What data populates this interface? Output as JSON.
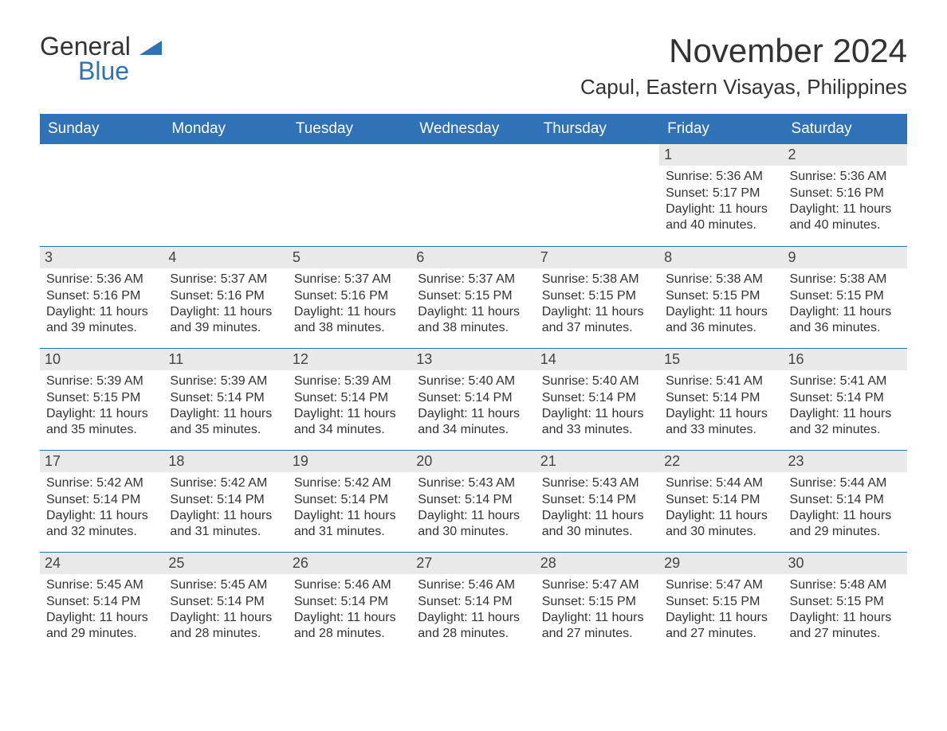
{
  "logo": {
    "text_general": "General",
    "text_blue": "Blue",
    "accent_color": "#2f72b8"
  },
  "title": "November 2024",
  "location": "Capul, Eastern Visayas, Philippines",
  "header_bg": "#2f72b8",
  "header_text_color": "#ffffff",
  "daynum_bg": "#e9e9e9",
  "week_border_color": "#2f72b8",
  "text_color": "#333333",
  "background_color": "#ffffff",
  "day_names": [
    "Sunday",
    "Monday",
    "Tuesday",
    "Wednesday",
    "Thursday",
    "Friday",
    "Saturday"
  ],
  "weeks": [
    [
      null,
      null,
      null,
      null,
      null,
      {
        "n": "1",
        "sunrise": "Sunrise: 5:36 AM",
        "sunset": "Sunset: 5:17 PM",
        "dl1": "Daylight: 11 hours",
        "dl2": "and 40 minutes."
      },
      {
        "n": "2",
        "sunrise": "Sunrise: 5:36 AM",
        "sunset": "Sunset: 5:16 PM",
        "dl1": "Daylight: 11 hours",
        "dl2": "and 40 minutes."
      }
    ],
    [
      {
        "n": "3",
        "sunrise": "Sunrise: 5:36 AM",
        "sunset": "Sunset: 5:16 PM",
        "dl1": "Daylight: 11 hours",
        "dl2": "and 39 minutes."
      },
      {
        "n": "4",
        "sunrise": "Sunrise: 5:37 AM",
        "sunset": "Sunset: 5:16 PM",
        "dl1": "Daylight: 11 hours",
        "dl2": "and 39 minutes."
      },
      {
        "n": "5",
        "sunrise": "Sunrise: 5:37 AM",
        "sunset": "Sunset: 5:16 PM",
        "dl1": "Daylight: 11 hours",
        "dl2": "and 38 minutes."
      },
      {
        "n": "6",
        "sunrise": "Sunrise: 5:37 AM",
        "sunset": "Sunset: 5:15 PM",
        "dl1": "Daylight: 11 hours",
        "dl2": "and 38 minutes."
      },
      {
        "n": "7",
        "sunrise": "Sunrise: 5:38 AM",
        "sunset": "Sunset: 5:15 PM",
        "dl1": "Daylight: 11 hours",
        "dl2": "and 37 minutes."
      },
      {
        "n": "8",
        "sunrise": "Sunrise: 5:38 AM",
        "sunset": "Sunset: 5:15 PM",
        "dl1": "Daylight: 11 hours",
        "dl2": "and 36 minutes."
      },
      {
        "n": "9",
        "sunrise": "Sunrise: 5:38 AM",
        "sunset": "Sunset: 5:15 PM",
        "dl1": "Daylight: 11 hours",
        "dl2": "and 36 minutes."
      }
    ],
    [
      {
        "n": "10",
        "sunrise": "Sunrise: 5:39 AM",
        "sunset": "Sunset: 5:15 PM",
        "dl1": "Daylight: 11 hours",
        "dl2": "and 35 minutes."
      },
      {
        "n": "11",
        "sunrise": "Sunrise: 5:39 AM",
        "sunset": "Sunset: 5:14 PM",
        "dl1": "Daylight: 11 hours",
        "dl2": "and 35 minutes."
      },
      {
        "n": "12",
        "sunrise": "Sunrise: 5:39 AM",
        "sunset": "Sunset: 5:14 PM",
        "dl1": "Daylight: 11 hours",
        "dl2": "and 34 minutes."
      },
      {
        "n": "13",
        "sunrise": "Sunrise: 5:40 AM",
        "sunset": "Sunset: 5:14 PM",
        "dl1": "Daylight: 11 hours",
        "dl2": "and 34 minutes."
      },
      {
        "n": "14",
        "sunrise": "Sunrise: 5:40 AM",
        "sunset": "Sunset: 5:14 PM",
        "dl1": "Daylight: 11 hours",
        "dl2": "and 33 minutes."
      },
      {
        "n": "15",
        "sunrise": "Sunrise: 5:41 AM",
        "sunset": "Sunset: 5:14 PM",
        "dl1": "Daylight: 11 hours",
        "dl2": "and 33 minutes."
      },
      {
        "n": "16",
        "sunrise": "Sunrise: 5:41 AM",
        "sunset": "Sunset: 5:14 PM",
        "dl1": "Daylight: 11 hours",
        "dl2": "and 32 minutes."
      }
    ],
    [
      {
        "n": "17",
        "sunrise": "Sunrise: 5:42 AM",
        "sunset": "Sunset: 5:14 PM",
        "dl1": "Daylight: 11 hours",
        "dl2": "and 32 minutes."
      },
      {
        "n": "18",
        "sunrise": "Sunrise: 5:42 AM",
        "sunset": "Sunset: 5:14 PM",
        "dl1": "Daylight: 11 hours",
        "dl2": "and 31 minutes."
      },
      {
        "n": "19",
        "sunrise": "Sunrise: 5:42 AM",
        "sunset": "Sunset: 5:14 PM",
        "dl1": "Daylight: 11 hours",
        "dl2": "and 31 minutes."
      },
      {
        "n": "20",
        "sunrise": "Sunrise: 5:43 AM",
        "sunset": "Sunset: 5:14 PM",
        "dl1": "Daylight: 11 hours",
        "dl2": "and 30 minutes."
      },
      {
        "n": "21",
        "sunrise": "Sunrise: 5:43 AM",
        "sunset": "Sunset: 5:14 PM",
        "dl1": "Daylight: 11 hours",
        "dl2": "and 30 minutes."
      },
      {
        "n": "22",
        "sunrise": "Sunrise: 5:44 AM",
        "sunset": "Sunset: 5:14 PM",
        "dl1": "Daylight: 11 hours",
        "dl2": "and 30 minutes."
      },
      {
        "n": "23",
        "sunrise": "Sunrise: 5:44 AM",
        "sunset": "Sunset: 5:14 PM",
        "dl1": "Daylight: 11 hours",
        "dl2": "and 29 minutes."
      }
    ],
    [
      {
        "n": "24",
        "sunrise": "Sunrise: 5:45 AM",
        "sunset": "Sunset: 5:14 PM",
        "dl1": "Daylight: 11 hours",
        "dl2": "and 29 minutes."
      },
      {
        "n": "25",
        "sunrise": "Sunrise: 5:45 AM",
        "sunset": "Sunset: 5:14 PM",
        "dl1": "Daylight: 11 hours",
        "dl2": "and 28 minutes."
      },
      {
        "n": "26",
        "sunrise": "Sunrise: 5:46 AM",
        "sunset": "Sunset: 5:14 PM",
        "dl1": "Daylight: 11 hours",
        "dl2": "and 28 minutes."
      },
      {
        "n": "27",
        "sunrise": "Sunrise: 5:46 AM",
        "sunset": "Sunset: 5:14 PM",
        "dl1": "Daylight: 11 hours",
        "dl2": "and 28 minutes."
      },
      {
        "n": "28",
        "sunrise": "Sunrise: 5:47 AM",
        "sunset": "Sunset: 5:15 PM",
        "dl1": "Daylight: 11 hours",
        "dl2": "and 27 minutes."
      },
      {
        "n": "29",
        "sunrise": "Sunrise: 5:47 AM",
        "sunset": "Sunset: 5:15 PM",
        "dl1": "Daylight: 11 hours",
        "dl2": "and 27 minutes."
      },
      {
        "n": "30",
        "sunrise": "Sunrise: 5:48 AM",
        "sunset": "Sunset: 5:15 PM",
        "dl1": "Daylight: 11 hours",
        "dl2": "and 27 minutes."
      }
    ]
  ]
}
